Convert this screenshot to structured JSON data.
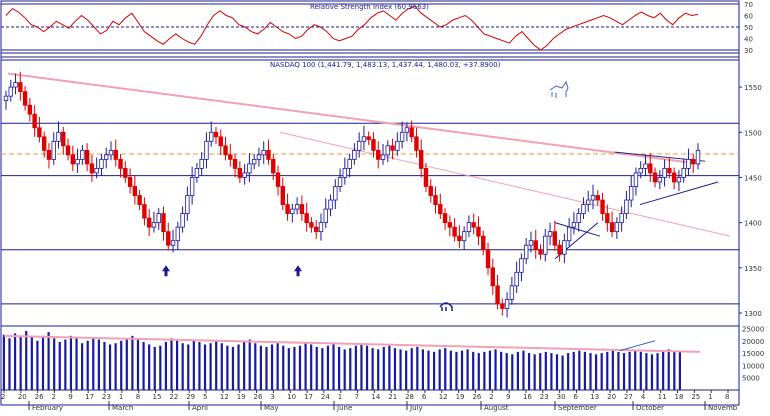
{
  "chart_data": [
    {
      "type": "line",
      "title": "Relative Strength Index (60.9663)",
      "ylim": [
        30,
        70
      ],
      "yticks": [
        30,
        40,
        50,
        60,
        70
      ],
      "reference_levels": [
        30,
        50,
        70
      ],
      "series": [
        {
          "values": [
            60,
            66,
            63,
            58,
            52,
            50,
            46,
            50,
            55,
            52,
            49,
            55,
            60,
            56,
            50,
            44,
            47,
            55,
            52,
            58,
            62,
            54,
            46,
            42,
            38,
            35,
            40,
            44,
            40,
            37,
            35,
            42,
            52,
            60,
            64,
            60,
            58,
            52,
            50,
            46,
            44,
            48,
            54,
            50,
            46,
            44,
            40,
            42,
            48,
            52,
            50,
            46,
            40,
            38,
            40,
            42,
            48,
            52,
            58,
            62,
            64,
            60,
            56,
            62,
            66,
            68,
            62,
            58,
            54,
            50,
            52,
            56,
            58,
            60,
            56,
            50,
            44,
            42,
            40,
            38,
            36,
            42,
            46,
            40,
            34,
            30,
            34,
            40,
            44,
            48,
            50,
            52,
            54,
            56,
            58,
            60,
            58,
            55,
            52,
            56,
            60,
            63,
            60,
            58,
            62,
            56,
            52,
            58,
            62,
            60,
            61
          ]
        }
      ],
      "color": "#d40000"
    },
    {
      "type": "candlestick",
      "title": "NASDAQ 100 (1,441.79, 1,483.13, 1,437.44, 1,480.03, +37.8900)",
      "ylim": [
        1290,
        1580
      ],
      "yticks": [
        1300,
        1350,
        1400,
        1450,
        1500,
        1550
      ],
      "x_tick_labels": [
        "2",
        "20",
        "26",
        "2",
        "9",
        "17",
        "23",
        "1",
        "8",
        "15",
        "22",
        "29",
        "5",
        "12",
        "19",
        "26",
        "3",
        "10",
        "17",
        "24",
        "1",
        "7",
        "14",
        "21",
        "28",
        "6",
        "12",
        "19",
        "26",
        "2",
        "9",
        "16",
        "23",
        "30",
        "6",
        "13",
        "20",
        "27",
        "4",
        "11",
        "18",
        "25",
        "1",
        "8"
      ],
      "month_labels": [
        "February",
        "March",
        "April",
        "May",
        "June",
        "July",
        "August",
        "September",
        "October",
        "Novemb"
      ],
      "horizontal_levels": [
        1370,
        1452,
        1510,
        1310
      ],
      "dashed_level": 1476,
      "annotations": [
        "up-arrow",
        "up-arrow",
        "bull-icon",
        "bear-icon"
      ],
      "closes": [
        1540,
        1550,
        1555,
        1545,
        1530,
        1520,
        1505,
        1495,
        1480,
        1470,
        1490,
        1500,
        1485,
        1475,
        1465,
        1470,
        1480,
        1465,
        1455,
        1460,
        1470,
        1475,
        1480,
        1470,
        1460,
        1450,
        1440,
        1430,
        1420,
        1405,
        1395,
        1400,
        1410,
        1390,
        1375,
        1380,
        1395,
        1410,
        1430,
        1450,
        1460,
        1470,
        1490,
        1500,
        1495,
        1485,
        1475,
        1470,
        1460,
        1450,
        1455,
        1465,
        1470,
        1475,
        1480,
        1470,
        1455,
        1440,
        1420,
        1410,
        1415,
        1420,
        1410,
        1400,
        1395,
        1390,
        1400,
        1415,
        1425,
        1440,
        1450,
        1460,
        1470,
        1480,
        1490,
        1495,
        1492,
        1480,
        1470,
        1475,
        1485,
        1480,
        1490,
        1500,
        1505,
        1495,
        1480,
        1460,
        1440,
        1430,
        1420,
        1410,
        1400,
        1395,
        1385,
        1380,
        1390,
        1400,
        1395,
        1385,
        1370,
        1350,
        1330,
        1310,
        1305,
        1315,
        1330,
        1345,
        1360,
        1375,
        1380,
        1370,
        1365,
        1385,
        1390,
        1375,
        1365,
        1380,
        1395,
        1400,
        1410,
        1420,
        1425,
        1430,
        1425,
        1410,
        1400,
        1390,
        1400,
        1410,
        1425,
        1440,
        1455,
        1460,
        1465,
        1455,
        1445,
        1450,
        1460,
        1455,
        1445,
        1450,
        1460,
        1470,
        1465,
        1480
      ]
    },
    {
      "type": "bar",
      "title": "",
      "ylim": [
        0,
        26000
      ],
      "yticks": [
        5000,
        10000,
        15000,
        20000,
        25000
      ],
      "values": [
        22500,
        21000,
        23000,
        22000,
        24000,
        21500,
        20000,
        22000,
        23500,
        21000,
        19500,
        20500,
        22000,
        21000,
        19000,
        20000,
        21000,
        20500,
        19500,
        18500,
        19000,
        20000,
        21000,
        22000,
        20500,
        19500,
        18500,
        17500,
        18000,
        19500,
        21000,
        20000,
        19000,
        18500,
        20000,
        19500,
        18500,
        19000,
        20000,
        19000,
        18000,
        17500,
        18500,
        19500,
        20500,
        19000,
        18000,
        17500,
        18500,
        19000,
        18000,
        17000,
        17500,
        18000,
        19000,
        18500,
        17500,
        17000,
        18000,
        18500,
        17500,
        16500,
        17000,
        18000,
        19000,
        18000,
        17000,
        16500,
        17500,
        18000,
        17000,
        16500,
        16000,
        17000,
        17500,
        16500,
        16000,
        15500,
        16500,
        17000,
        16000,
        15500,
        16000,
        16500,
        15500,
        15000,
        15500,
        16000,
        16500,
        15500,
        15000,
        14500,
        15500,
        16000,
        15000,
        14500,
        15000,
        15500,
        15000,
        14500,
        14000,
        15000,
        15500,
        16000,
        15500,
        15000,
        14500,
        15000,
        15500,
        16000,
        15500,
        15000,
        15500,
        16000,
        15500,
        15000,
        14500,
        15000,
        15500,
        16500,
        16000,
        15500
      ]
    }
  ],
  "colors": {
    "up_candle": "#1a1aa0",
    "down_candle": "#e00000",
    "grid": "#1b1b8f",
    "trendline": "#f4a0b4",
    "dashed": "#e8a040",
    "volume": "#1a1aa0"
  }
}
